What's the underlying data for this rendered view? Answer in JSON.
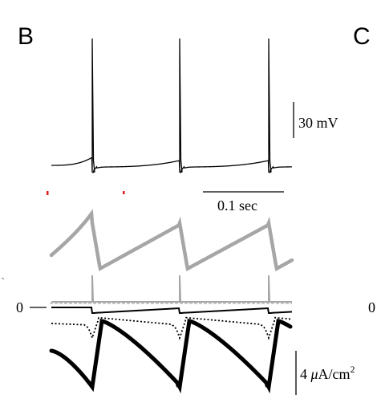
{
  "panels": {
    "left": "B",
    "right": "C"
  },
  "scale_bars": {
    "voltage": "30 mV",
    "time": "0.1 sec",
    "current_prefix": "4 ",
    "current_mu": "μ",
    "current_unit": "A/cm",
    "current_exp": "2"
  },
  "zero_labels": {
    "left": "0",
    "right": "0"
  },
  "colors": {
    "trace": "#000000",
    "gray": "#a6a6a6",
    "stim": "#e41a1c"
  },
  "chart_data": {
    "type": "line",
    "title": "",
    "xlabel": "",
    "ylabel": "",
    "spike_times_sec": [
      0.0,
      0.105,
      0.21
    ],
    "time_scale_sec": 0.1,
    "voltage_scale_mV": 30,
    "current_scale_uA_per_cm2": 4,
    "stimulus_marks": 2,
    "series": [
      {
        "values": "membrane potential trace with 3 action potentials"
      },
      {
        "values": "gray slow variable, sawtooth shape"
      },
      {
        "values": "gray current near zero with spikes"
      },
      {
        "values": "black current near zero, sawtooth"
      },
      {
        "values": "dotted current"
      },
      {
        "values": "thick black current, sawtooth"
      }
    ]
  }
}
